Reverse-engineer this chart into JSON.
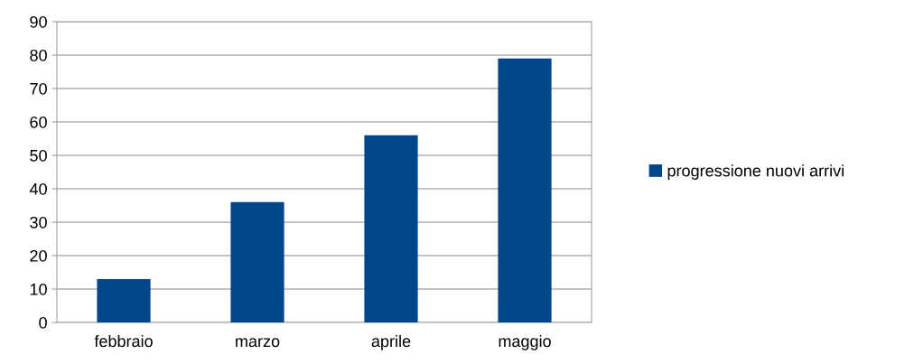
{
  "chart_data": {
    "type": "bar",
    "categories": [
      "febbraio",
      "marzo",
      "aprile",
      "maggio"
    ],
    "series": [
      {
        "name": "progressione nuovi arrivi",
        "color": "#00468b",
        "values": [
          13,
          36,
          56,
          79
        ]
      }
    ],
    "ylim": [
      0,
      90
    ],
    "yticks": [
      0,
      10,
      20,
      30,
      40,
      50,
      60,
      70,
      80,
      90
    ],
    "grid": "y",
    "legend": "right"
  }
}
